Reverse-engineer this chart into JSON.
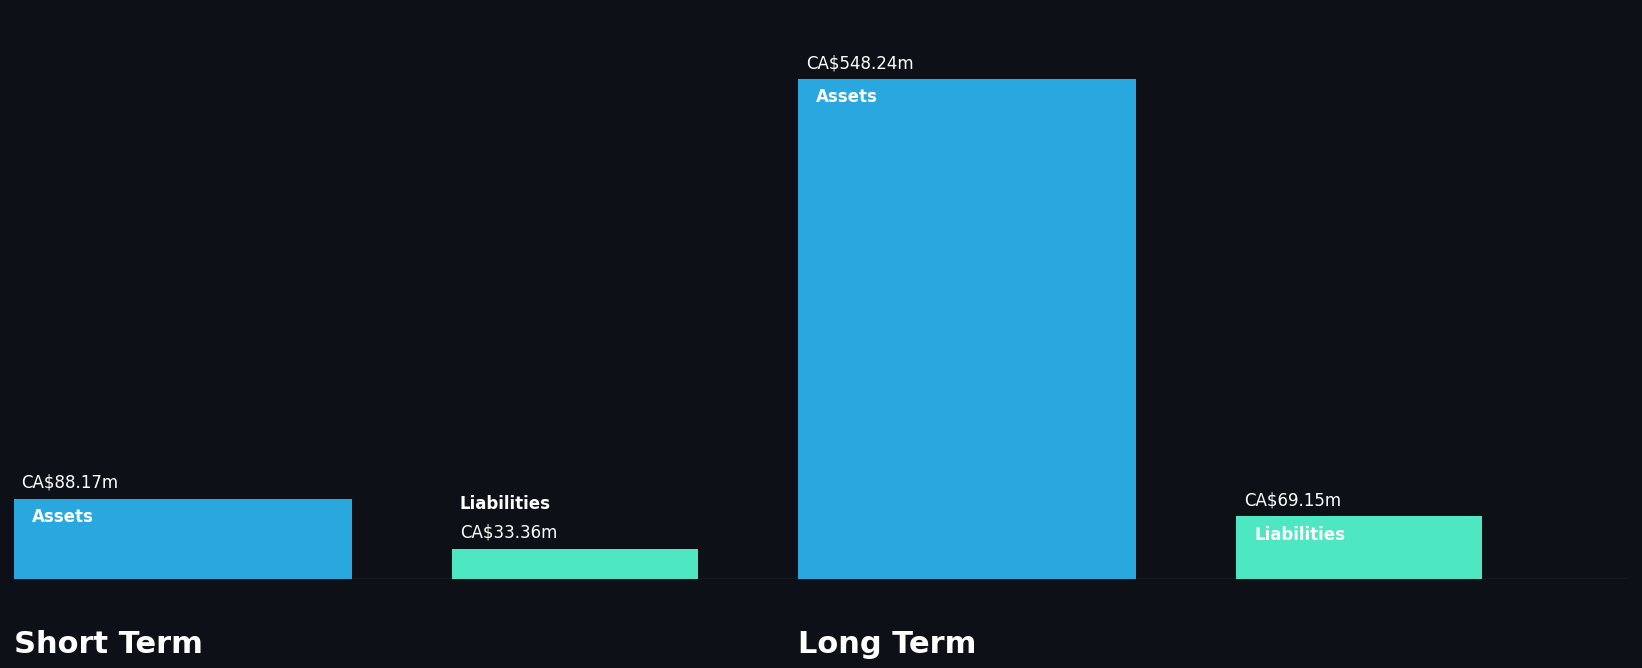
{
  "background_color": "#0d1117",
  "groups": [
    "Short Term",
    "Long Term"
  ],
  "bars": [
    {
      "group": "Short Term",
      "label": "Assets",
      "value": 88.17,
      "color": "#29a8e0",
      "value_label": "CA$88.17m",
      "bar_label": "Assets",
      "label_inside": true
    },
    {
      "group": "Short Term",
      "label": "Liabilities",
      "value": 33.36,
      "color": "#4de8c2",
      "value_label": "CA$33.36m",
      "bar_label": "Liabilities",
      "label_inside": false
    },
    {
      "group": "Long Term",
      "label": "Assets",
      "value": 548.24,
      "color": "#29a8e0",
      "value_label": "CA$548.24m",
      "bar_label": "Assets",
      "label_inside": true
    },
    {
      "group": "Long Term",
      "label": "Liabilities",
      "value": 69.15,
      "color": "#4de8c2",
      "value_label": "CA$69.15m",
      "bar_label": "Liabilities",
      "label_inside": true
    }
  ],
  "group_label_color": "#ffffff",
  "group_label_fontsize": 22,
  "value_label_color": "#ffffff",
  "value_label_fontsize": 12,
  "bar_label_color": "#ffffff",
  "bar_label_fontsize": 12,
  "ylim": [
    0,
    620
  ]
}
